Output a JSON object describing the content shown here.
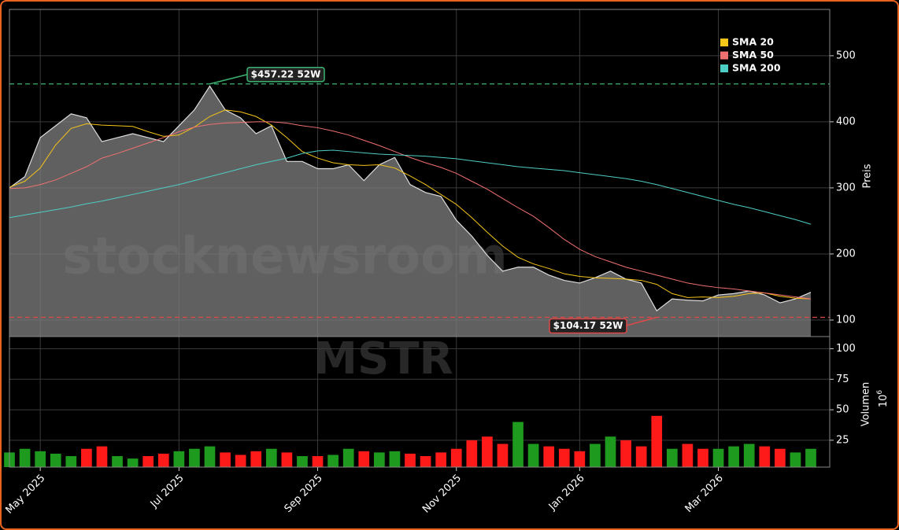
{
  "chart_data": {
    "type": "area",
    "watermark": "stocknewsroom",
    "symbol": "MSTR",
    "ylabel": "Preis",
    "categories": [
      null,
      null,
      "May 2025",
      null,
      null,
      null,
      null,
      null,
      null,
      null,
      null,
      "Jul 2025",
      null,
      null,
      null,
      null,
      null,
      null,
      null,
      null,
      "Sep 2025",
      null,
      null,
      null,
      null,
      null,
      null,
      null,
      null,
      "Nov 2025",
      null,
      null,
      null,
      null,
      null,
      null,
      null,
      "Jan 2026",
      null,
      null,
      null,
      null,
      null,
      null,
      null,
      null,
      "Mar 2026",
      null,
      null,
      null,
      null,
      null,
      null
    ],
    "ylim": [
      75,
      570
    ],
    "yticks": [
      100,
      200,
      300,
      400,
      500
    ],
    "grid": true,
    "price": {
      "color": "#808080",
      "values": [
        300,
        317,
        376,
        394,
        412,
        406,
        370,
        376,
        382,
        376,
        370,
        394,
        418,
        454,
        418,
        406,
        382,
        394,
        340,
        340,
        329,
        329,
        335,
        311,
        335,
        346,
        305,
        293,
        287,
        251,
        227,
        198,
        174,
        180,
        180,
        168,
        160,
        156,
        164,
        174,
        162,
        156,
        114,
        132,
        130,
        129,
        138,
        140,
        144,
        138,
        126,
        132,
        142
      ]
    },
    "series": [
      {
        "name": "SMA 20",
        "color": "#f5c518",
        "values": [
          301,
          310,
          330,
          365,
          390,
          397,
          395,
          394,
          393,
          385,
          378,
          380,
          392,
          408,
          418,
          415,
          408,
          395,
          376,
          355,
          345,
          338,
          335,
          334,
          335,
          330,
          318,
          305,
          290,
          275,
          255,
          233,
          212,
          195,
          185,
          178,
          170,
          166,
          164,
          163,
          162,
          160,
          154,
          140,
          134,
          135,
          134,
          136,
          140,
          141,
          136,
          133,
          132
        ]
      },
      {
        "name": "SMA 50",
        "color": "#f07070",
        "values": [
          299,
          300,
          305,
          312,
          322,
          332,
          345,
          352,
          360,
          368,
          376,
          385,
          392,
          396,
          398,
          399,
          400,
          400,
          398,
          394,
          391,
          386,
          380,
          372,
          364,
          355,
          346,
          338,
          331,
          322,
          310,
          298,
          284,
          270,
          257,
          240,
          222,
          207,
          196,
          188,
          180,
          174,
          168,
          162,
          156,
          152,
          149,
          147,
          144,
          141,
          138,
          135,
          132
        ]
      },
      {
        "name": "SMA 200",
        "color": "#4ecdc4",
        "values": [
          255,
          259,
          263,
          267,
          271,
          276,
          280,
          285,
          290,
          295,
          300,
          305,
          311,
          317,
          323,
          329,
          335,
          340,
          345,
          352,
          356,
          357,
          355,
          353,
          351,
          350,
          349,
          348,
          346,
          344,
          341,
          338,
          335,
          332,
          330,
          328,
          326,
          323,
          320,
          317,
          314,
          310,
          305,
          299,
          293,
          287,
          281,
          275,
          270,
          264,
          258,
          252,
          245
        ]
      }
    ],
    "legend": "upper right",
    "annotations": [
      {
        "value": 457.22,
        "label": "$457.22 52W",
        "color": "#3cb371"
      },
      {
        "value": 104.17,
        "label": "$104.17 52W",
        "color": "#e04848"
      }
    ],
    "volume": {
      "ylabel": "Volumen",
      "unit_base": "10",
      "unit_exponent": "6",
      "up_color": "#1e9a1e",
      "down_color": "#ff1a1a",
      "ylim": [
        3,
        110
      ],
      "yticks": [
        25,
        50,
        75,
        100
      ],
      "values": [
        15,
        18,
        16,
        14,
        12,
        18,
        20,
        12,
        10,
        12,
        14,
        16,
        18,
        20,
        15,
        13,
        16,
        18,
        15,
        12,
        12,
        13,
        18,
        16,
        15,
        16,
        14,
        12,
        15,
        18,
        25,
        28,
        22,
        40,
        22,
        20,
        18,
        16,
        22,
        28,
        25,
        20,
        45,
        18,
        22,
        18,
        18,
        20,
        22,
        20,
        18,
        15,
        18
      ]
    }
  }
}
